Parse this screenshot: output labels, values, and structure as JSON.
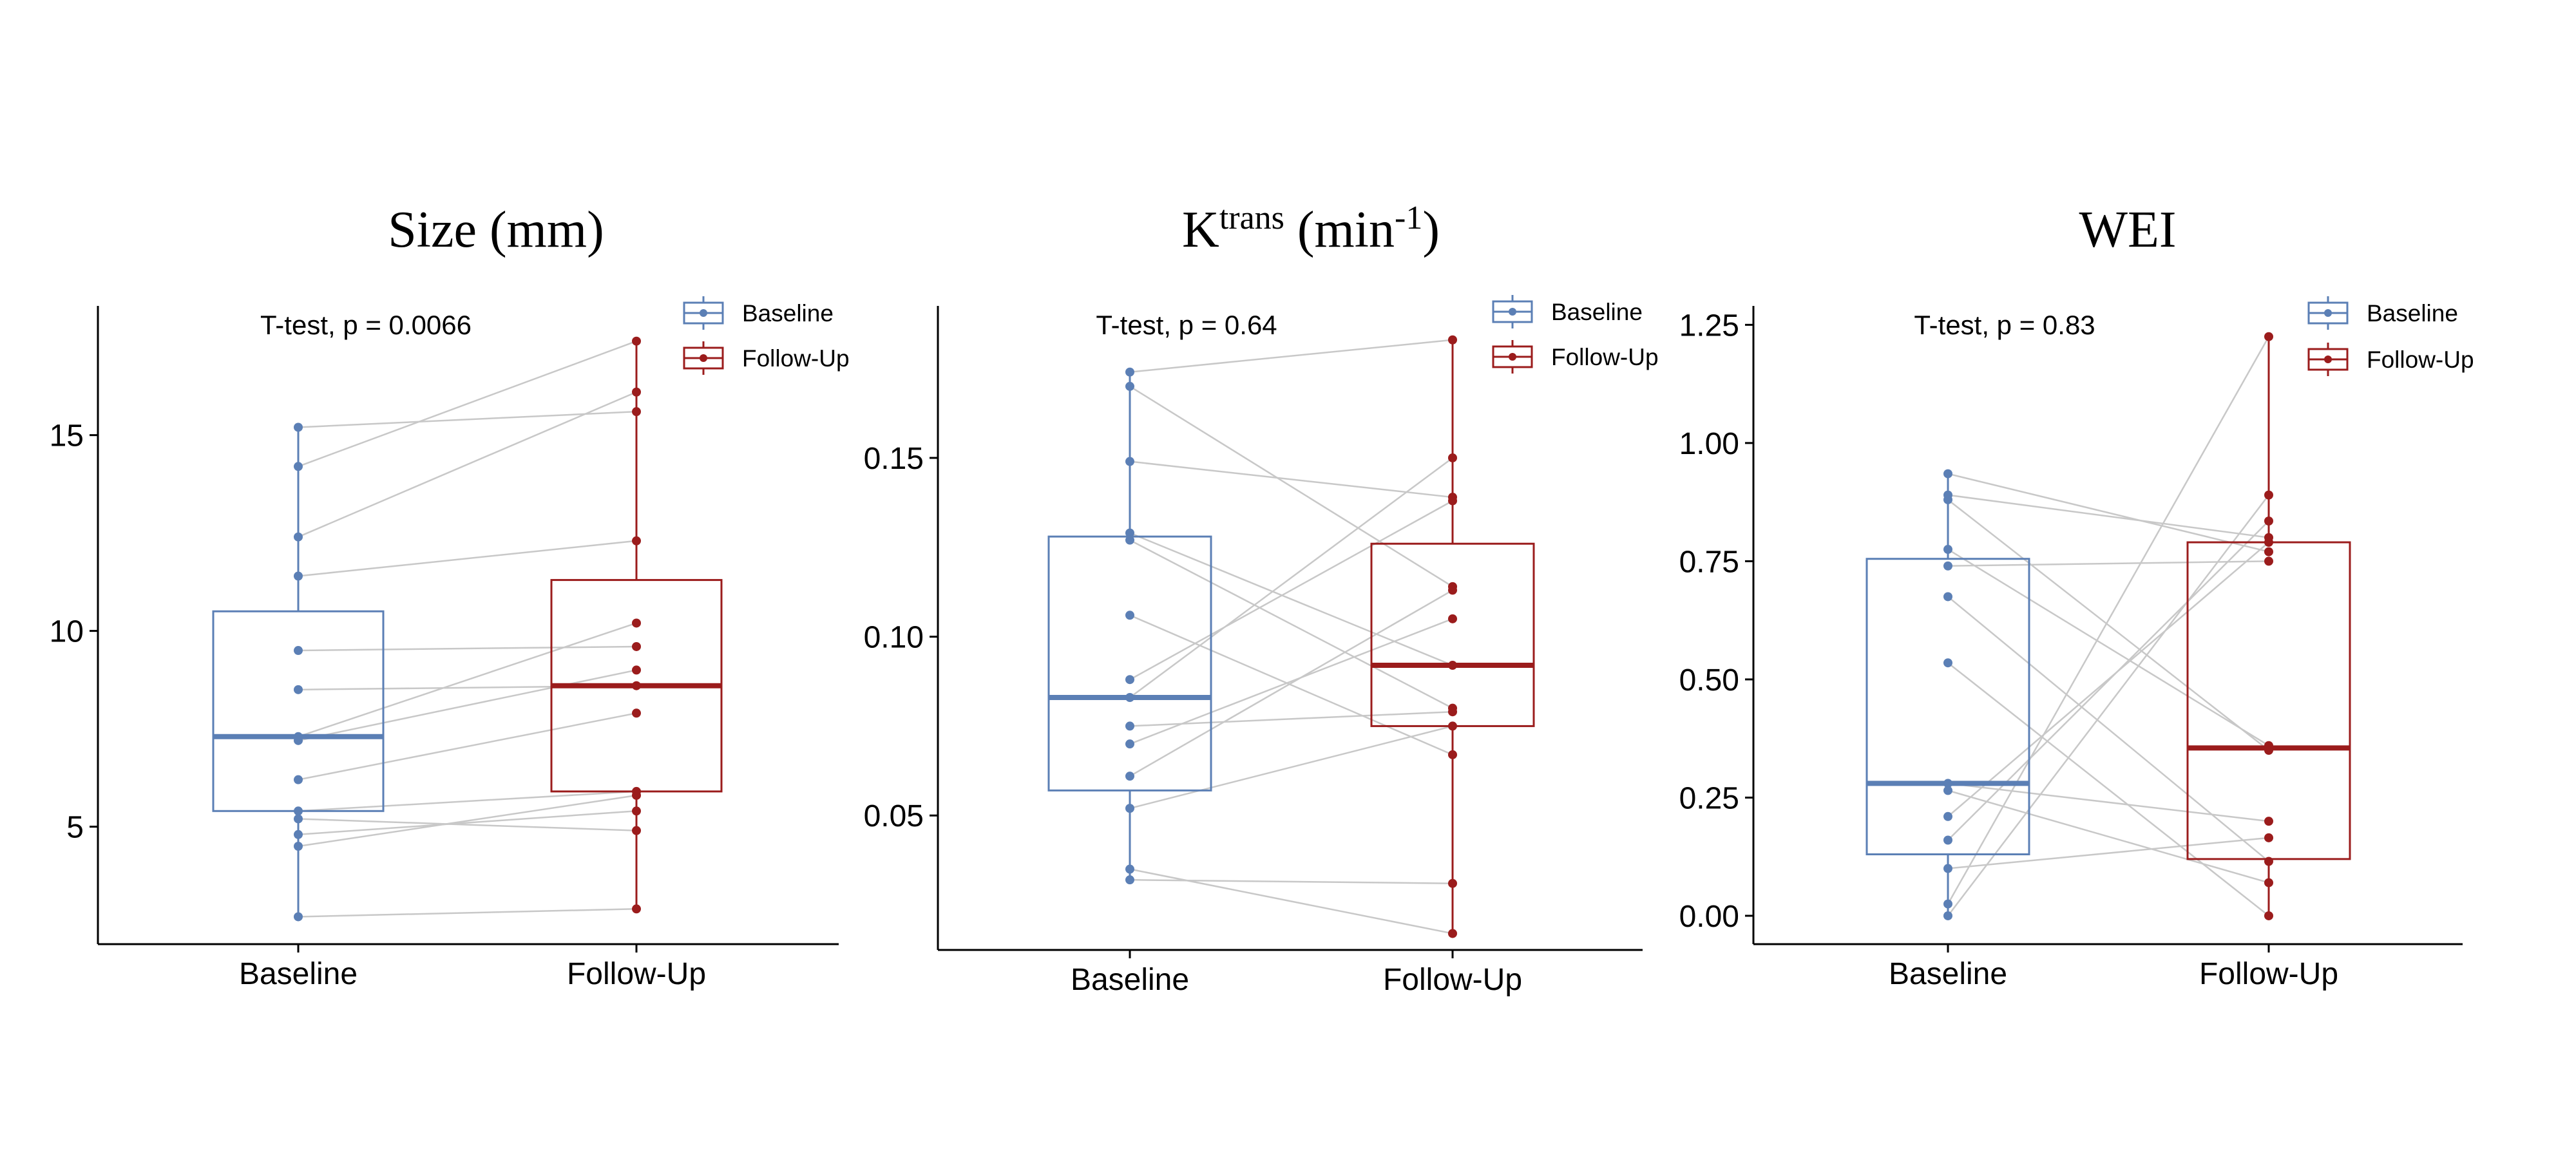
{
  "colors": {
    "baseline": "#5b7fb5",
    "followup": "#9b1c1c",
    "pair_line": "#c8c8c8",
    "axis": "#000000"
  },
  "chart_data": [
    {
      "type": "boxplot",
      "title": "Size (mm)",
      "annotation": "T-test, p = 0.0066",
      "categories": [
        "Baseline",
        "Follow-Up"
      ],
      "legend": [
        "Baseline",
        "Follow-Up"
      ],
      "legend_position": "top-right",
      "ylim": [
        2.0,
        18.3
      ],
      "yticks": [
        5,
        10,
        15
      ],
      "ytick_labels": [
        "5",
        "10",
        "15"
      ],
      "series": [
        {
          "name": "Baseline",
          "box": {
            "whisker_low": 2.7,
            "q1": 5.4,
            "median": 7.3,
            "q3": 10.5,
            "whisker_high": 15.2
          },
          "points": [
            15.2,
            14.2,
            12.4,
            11.4,
            9.5,
            8.5,
            7.3,
            7.2,
            6.2,
            5.4,
            5.2,
            4.8,
            4.5,
            2.7
          ]
        },
        {
          "name": "Follow-Up",
          "box": {
            "whisker_low": 2.9,
            "q1": 5.9,
            "median": 8.6,
            "q3": 11.3,
            "whisker_high": 17.4
          },
          "points": [
            15.6,
            17.4,
            16.1,
            12.3,
            9.6,
            8.6,
            10.2,
            9.0,
            7.9,
            5.9,
            4.9,
            5.4,
            5.8,
            2.9
          ]
        }
      ]
    },
    {
      "type": "boxplot",
      "title_main": "K",
      "title_sup": "trans",
      "title_mid": " (min",
      "title_sup2": "-1",
      "title_end": ")",
      "annotation": "T-test, p = 0.64",
      "categories": [
        "Baseline",
        "Follow-Up"
      ],
      "legend": [
        "Baseline",
        "Follow-Up"
      ],
      "legend_position": "top-right",
      "ylim": [
        0.0124,
        0.1925
      ],
      "yticks": [
        0.05,
        0.1,
        0.15
      ],
      "ytick_labels": [
        "0.05",
        "0.10",
        "0.15"
      ],
      "series": [
        {
          "name": "Baseline",
          "box": {
            "whisker_low": 0.032,
            "q1": 0.057,
            "median": 0.083,
            "q3": 0.128,
            "whisker_high": 0.174
          },
          "points": [
            0.174,
            0.17,
            0.149,
            0.129,
            0.127,
            0.106,
            0.088,
            0.083,
            0.075,
            0.07,
            0.061,
            0.052,
            0.035,
            0.032
          ]
        },
        {
          "name": "Follow-Up",
          "box": {
            "whisker_low": 0.017,
            "q1": 0.075,
            "median": 0.092,
            "q3": 0.126,
            "whisker_high": 0.183
          },
          "points": [
            0.183,
            0.114,
            0.139,
            0.092,
            0.08,
            0.067,
            0.138,
            0.15,
            0.079,
            0.105,
            0.113,
            0.075,
            0.017,
            0.031
          ]
        }
      ]
    },
    {
      "type": "boxplot",
      "title": "WEI",
      "annotation": "T-test, p = 0.83",
      "categories": [
        "Baseline",
        "Follow-Up"
      ],
      "legend": [
        "Baseline",
        "Follow-Up"
      ],
      "legend_position": "top-right",
      "ylim": [
        -0.06,
        1.29
      ],
      "yticks": [
        0.0,
        0.25,
        0.5,
        0.75,
        1.0,
        1.25
      ],
      "ytick_labels": [
        "0.00",
        "0.25",
        "0.50",
        "0.75",
        "1.00",
        "1.25"
      ],
      "series": [
        {
          "name": "Baseline",
          "box": {
            "whisker_low": 0.0,
            "q1": 0.13,
            "median": 0.28,
            "q3": 0.755,
            "whisker_high": 0.935
          },
          "points": [
            0.935,
            0.89,
            0.88,
            0.775,
            0.74,
            0.675,
            0.535,
            0.28,
            0.265,
            0.21,
            0.16,
            0.1,
            0.025,
            0.0
          ]
        },
        {
          "name": "Follow-Up",
          "box": {
            "whisker_low": 0.0,
            "q1": 0.12,
            "median": 0.355,
            "q3": 0.79,
            "whisker_high": 1.225
          },
          "points": [
            0.77,
            0.8,
            0.35,
            0.36,
            0.75,
            0.115,
            0.0,
            0.2,
            0.07,
            0.79,
            0.835,
            0.165,
            1.225,
            0.89
          ]
        }
      ]
    }
  ]
}
